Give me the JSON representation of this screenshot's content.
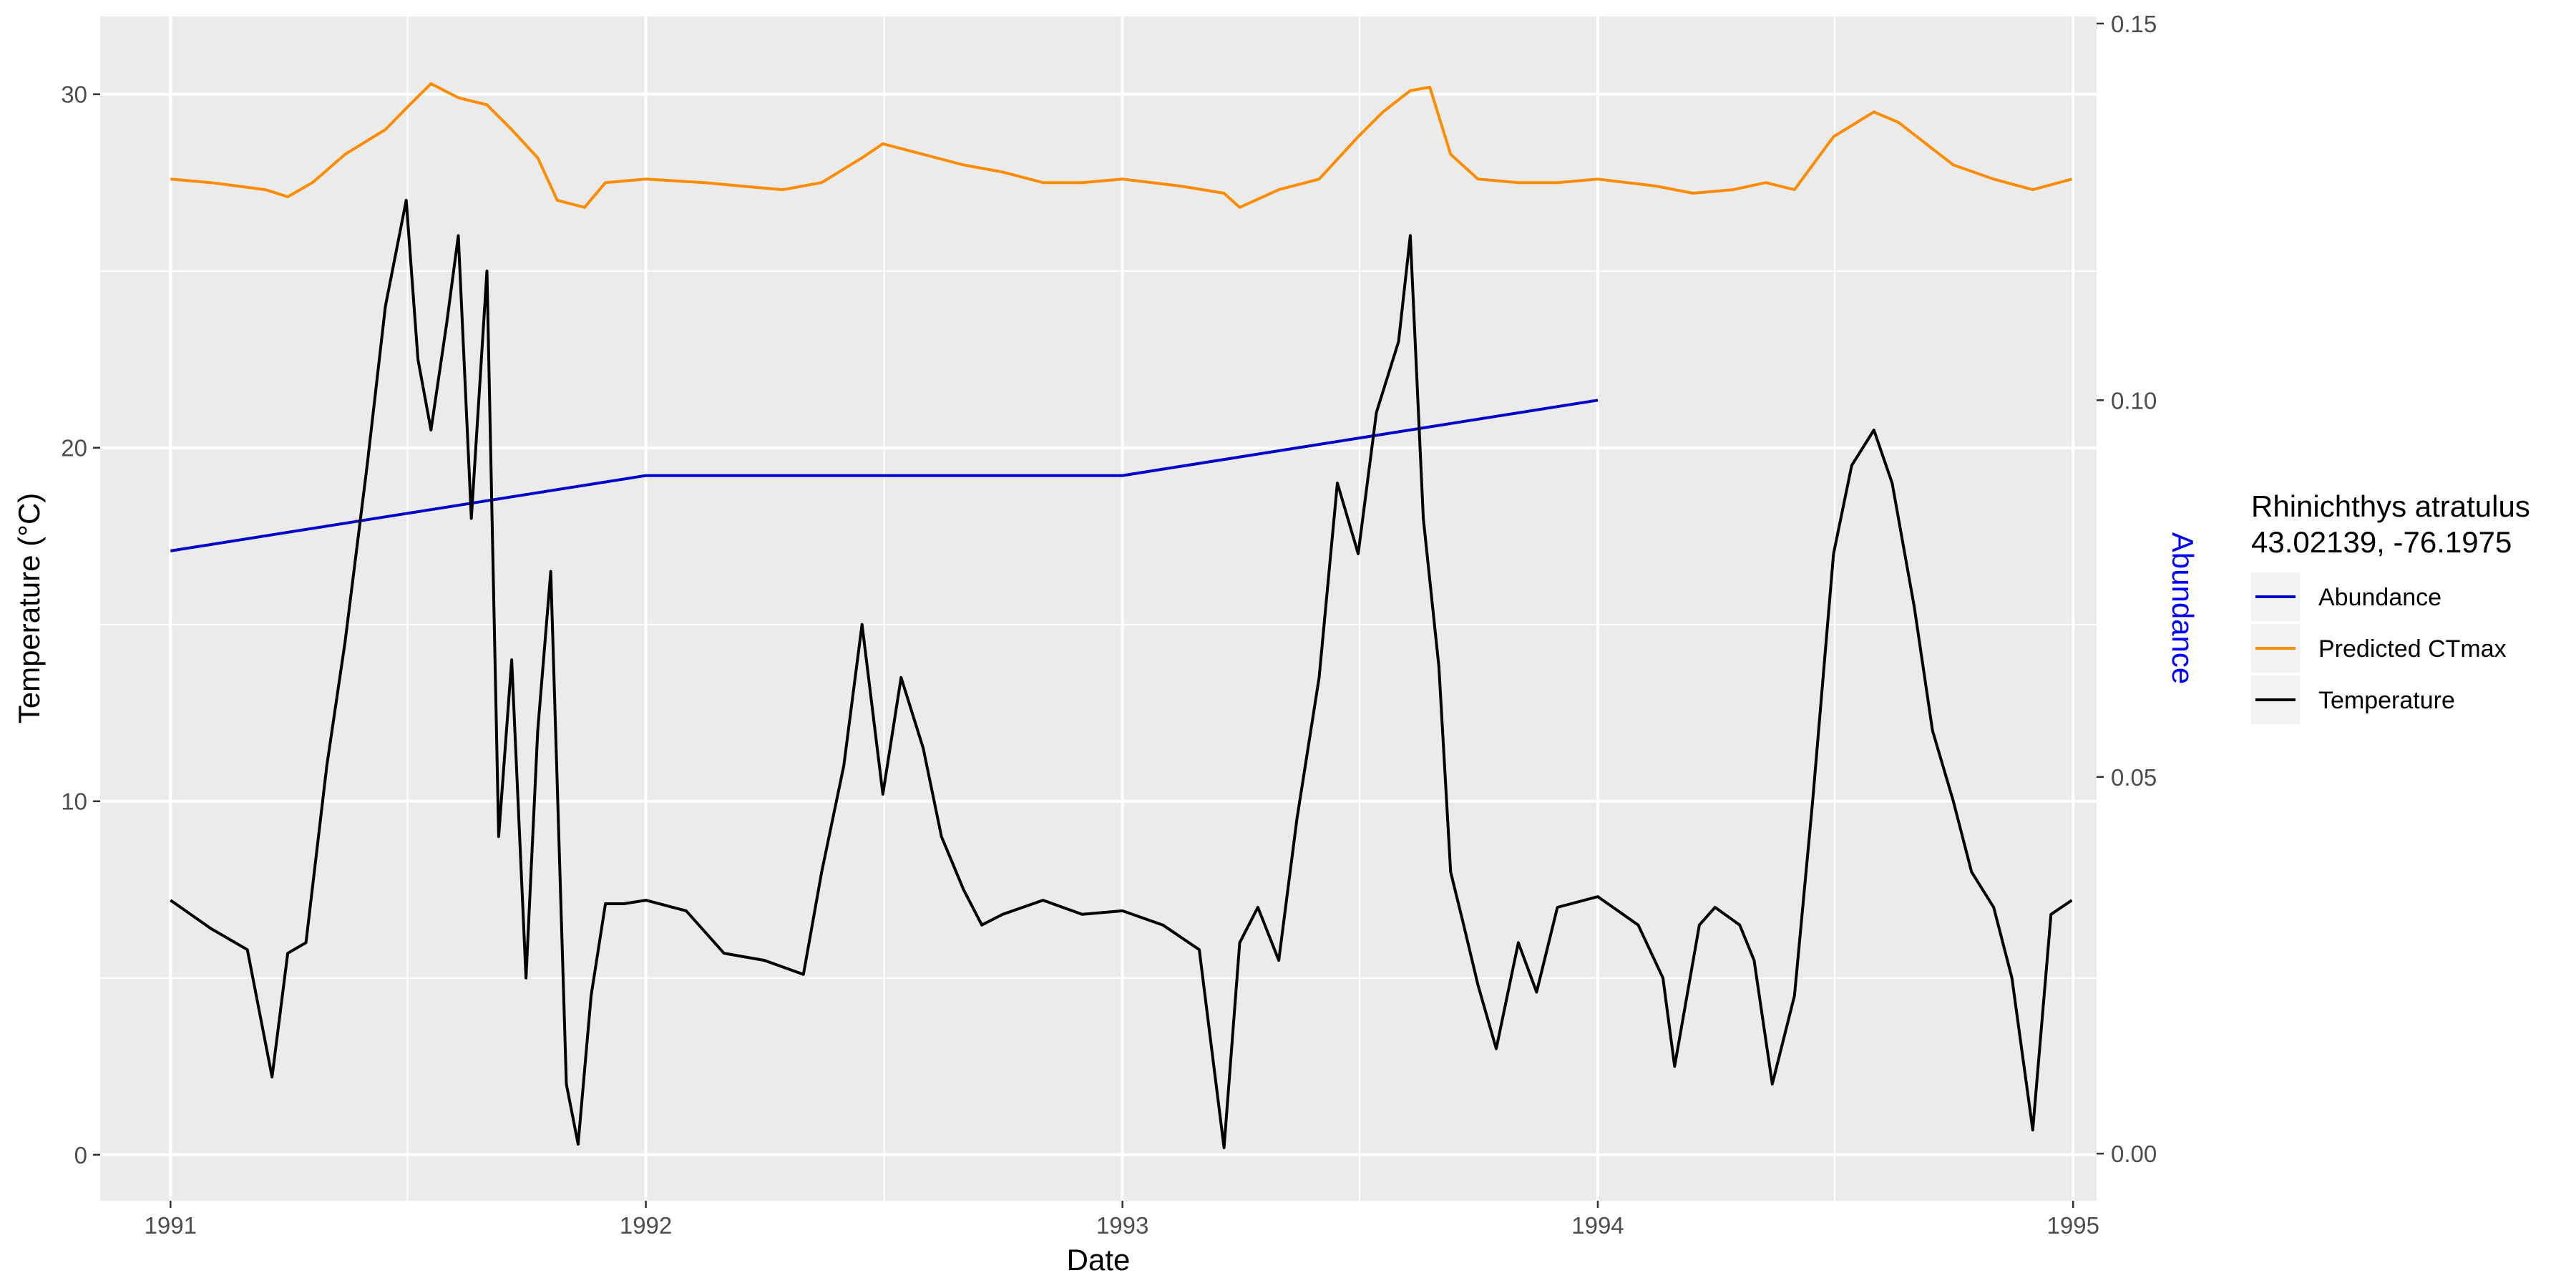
{
  "chart_data": {
    "type": "line",
    "xlabel": "Date",
    "ylabel_left": "Temperature (°C)",
    "ylabel_right": "Abundance",
    "xlim": [
      "1990-11-08",
      "1995-01-19"
    ],
    "x_ticks": [
      "1991",
      "1992",
      "1993",
      "1994",
      "1995"
    ],
    "ylim_left": [
      -1.3,
      32.2
    ],
    "y_ticks_left": [
      "0",
      "10",
      "20",
      "30"
    ],
    "ylim_right": [
      -0.00625,
      0.15094
    ],
    "y_ticks_right": [
      "0.00",
      "0.05",
      "0.10",
      "0.15"
    ],
    "grid": true,
    "legend_placement": "right",
    "legend_title": [
      "Rhinichthys atratulus",
      "43.02139, -76.1975"
    ],
    "series": [
      {
        "name": "Abundance",
        "color": "#0000CD",
        "axis": "right",
        "x": [
          "1991-01-01",
          "1992-01-01",
          "1993-01-01",
          "1994-01-01"
        ],
        "y": [
          0.08,
          0.09,
          0.09,
          0.1
        ]
      },
      {
        "name": "Predicted CTmax",
        "color": "#FF8C00",
        "axis": "left",
        "x": [
          "1991-01-01",
          "1991-02-01",
          "1991-03-15",
          "1991-04-01",
          "1991-04-20",
          "1991-05-15",
          "1991-06-15",
          "1991-07-01",
          "1991-07-20",
          "1991-08-10",
          "1991-09-01",
          "1991-09-20",
          "1991-10-10",
          "1991-10-25",
          "1991-11-15",
          "1991-12-01",
          "1992-01-01",
          "1992-02-15",
          "1992-03-15",
          "1992-04-15",
          "1992-05-15",
          "1992-06-15",
          "1992-07-01",
          "1992-08-01",
          "1992-09-01",
          "1992-10-01",
          "1992-11-01",
          "1992-12-01",
          "1993-01-01",
          "1993-02-15",
          "1993-03-20",
          "1993-04-01",
          "1993-05-01",
          "1993-06-01",
          "1993-07-01",
          "1993-07-20",
          "1993-08-10",
          "1993-08-25",
          "1993-09-10",
          "1993-10-01",
          "1993-11-01",
          "1993-12-01",
          "1994-01-01",
          "1994-02-15",
          "1994-03-15",
          "1994-04-15",
          "1994-05-10",
          "1994-06-01",
          "1994-07-01",
          "1994-08-01",
          "1994-08-20",
          "1994-09-10",
          "1994-10-01",
          "1994-11-01",
          "1994-12-01",
          "1994-12-31"
        ],
        "y": [
          27.6,
          27.5,
          27.3,
          27.1,
          27.5,
          28.3,
          29.0,
          29.6,
          30.3,
          29.9,
          29.7,
          29.0,
          28.2,
          27.0,
          26.8,
          27.5,
          27.6,
          27.5,
          27.4,
          27.3,
          27.5,
          28.2,
          28.6,
          28.3,
          28.0,
          27.8,
          27.5,
          27.5,
          27.6,
          27.4,
          27.2,
          26.8,
          27.3,
          27.6,
          28.8,
          29.5,
          30.1,
          30.2,
          28.3,
          27.6,
          27.5,
          27.5,
          27.6,
          27.4,
          27.2,
          27.3,
          27.5,
          27.3,
          28.8,
          29.5,
          29.2,
          28.6,
          28.0,
          27.6,
          27.3,
          27.6
        ]
      },
      {
        "name": "Temperature",
        "color": "#000000",
        "axis": "left",
        "x": [
          "1991-01-01",
          "1991-02-01",
          "1991-03-01",
          "1991-03-20",
          "1991-04-01",
          "1991-04-15",
          "1991-05-01",
          "1991-05-15",
          "1991-06-01",
          "1991-06-15",
          "1991-07-01",
          "1991-07-10",
          "1991-07-20",
          "1991-08-01",
          "1991-08-10",
          "1991-08-20",
          "1991-09-01",
          "1991-09-10",
          "1991-09-20",
          "1991-10-01",
          "1991-10-10",
          "1991-10-20",
          "1991-11-01",
          "1991-11-10",
          "1991-11-20",
          "1991-12-01",
          "1991-12-15",
          "1992-01-01",
          "1992-02-01",
          "1992-03-01",
          "1992-04-01",
          "1992-05-01",
          "1992-05-15",
          "1992-06-01",
          "1992-06-15",
          "1992-07-01",
          "1992-07-15",
          "1992-08-01",
          "1992-08-15",
          "1992-09-01",
          "1992-09-15",
          "1992-10-01",
          "1992-11-01",
          "1992-12-01",
          "1993-01-01",
          "1993-02-01",
          "1993-03-01",
          "1993-03-20",
          "1993-04-01",
          "1993-04-15",
          "1993-05-01",
          "1993-05-15",
          "1993-06-01",
          "1993-06-15",
          "1993-07-01",
          "1993-07-15",
          "1993-08-01",
          "1993-08-10",
          "1993-08-20",
          "1993-09-01",
          "1993-09-10",
          "1993-09-20",
          "1993-10-01",
          "1993-10-15",
          "1993-11-01",
          "1993-11-15",
          "1993-12-01",
          "1994-01-01",
          "1994-02-01",
          "1994-02-20",
          "1994-03-01",
          "1994-03-20",
          "1994-04-01",
          "1994-04-20",
          "1994-05-01",
          "1994-05-15",
          "1994-06-01",
          "1994-06-15",
          "1994-07-01",
          "1994-07-15",
          "1994-08-01",
          "1994-08-15",
          "1994-09-01",
          "1994-09-15",
          "1994-10-01",
          "1994-10-15",
          "1994-11-01",
          "1994-11-15",
          "1994-12-01",
          "1994-12-15",
          "1994-12-31"
        ],
        "y": [
          7.2,
          6.4,
          5.8,
          2.2,
          5.7,
          6.0,
          11.0,
          14.5,
          19.5,
          24.0,
          27.0,
          22.5,
          20.5,
          23.5,
          26.0,
          18.0,
          25.0,
          9.0,
          14.0,
          5.0,
          12.0,
          16.5,
          2.0,
          0.3,
          4.5,
          7.1,
          7.1,
          7.2,
          6.9,
          5.7,
          5.5,
          5.1,
          8.0,
          11.0,
          15.0,
          10.2,
          13.5,
          11.5,
          9.0,
          7.5,
          6.5,
          6.8,
          7.2,
          6.8,
          6.9,
          6.5,
          5.8,
          0.2,
          6.0,
          7.0,
          5.5,
          9.5,
          13.5,
          19.0,
          17.0,
          21.0,
          23.0,
          26.0,
          18.0,
          13.8,
          8.0,
          6.5,
          4.8,
          3.0,
          6.0,
          4.6,
          7.0,
          7.3,
          6.5,
          5.0,
          2.5,
          6.5,
          7.0,
          6.5,
          5.5,
          2.0,
          4.5,
          10.0,
          17.0,
          19.5,
          20.5,
          19.0,
          15.5,
          12.0,
          10.0,
          8.0,
          7.0,
          5.0,
          0.7,
          6.8,
          7.2
        ]
      }
    ]
  }
}
